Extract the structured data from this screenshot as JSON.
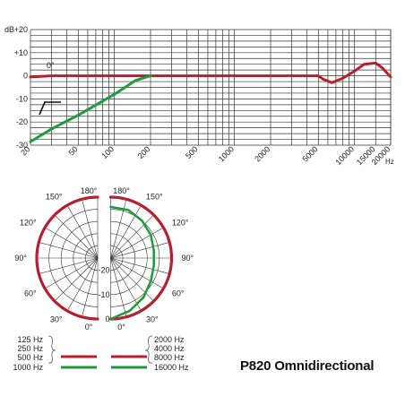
{
  "model_title": "P820 Omnidirectional",
  "colors": {
    "red": "#b5202e",
    "green": "#1f9a3c",
    "grid": "#333333",
    "text": "#222222"
  },
  "chart_data": [
    {
      "type": "line",
      "x_scale": "log",
      "xlim": [
        20,
        20000
      ],
      "ylim": [
        -30,
        20
      ],
      "x_unit": "Hz",
      "y_unit": "dB",
      "x_tick_labels": [
        "20",
        "50",
        "100",
        "200",
        "500",
        "1000",
        "2000",
        "5000",
        "10000",
        "15000",
        "20000"
      ],
      "y_tick_labels": [
        "+20",
        "+10",
        "0",
        "-10",
        "-20",
        "-30"
      ],
      "y_tick_values": [
        20,
        10,
        0,
        -10,
        -20,
        -30
      ],
      "annotations": [
        "0°"
      ],
      "series": [
        {
          "color": "red",
          "x": [
            20,
            30,
            50,
            100,
            200,
            500,
            1000,
            2000,
            4000,
            5000,
            5500,
            6500,
            8000,
            10000,
            12000,
            15000,
            17000,
            20000
          ],
          "y": [
            -0.5,
            0,
            0,
            0,
            0,
            0,
            0,
            0,
            0,
            0,
            -1.5,
            -3,
            -1,
            2,
            5,
            5.5,
            3.5,
            -0.5
          ]
        },
        {
          "color": "green",
          "x": [
            20,
            30,
            50,
            100,
            150,
            200
          ],
          "y": [
            -28.5,
            -23,
            -17,
            -8,
            -2,
            0
          ]
        }
      ]
    },
    {
      "type": "polar",
      "angle_labels": [
        "180°",
        "150°",
        "120°",
        "90°",
        "60°",
        "30°",
        "0°"
      ],
      "angle_label_values": [
        180,
        150,
        120,
        90,
        60,
        30,
        0
      ],
      "radial_labels": [
        "-20",
        "-10",
        "0"
      ],
      "radial_label_values": [
        -20,
        -10,
        0
      ],
      "r_range_db": [
        -25,
        0
      ],
      "series": [
        {
          "color": "red",
          "side": "left",
          "angles": [
            0,
            30,
            60,
            90,
            120,
            150,
            180
          ],
          "db": [
            0,
            0,
            0,
            0,
            0,
            0,
            0
          ]
        },
        {
          "color": "red",
          "side": "right",
          "angles": [
            0,
            30,
            60,
            90,
            120,
            150,
            180
          ],
          "db": [
            0,
            0,
            0,
            0,
            0,
            0,
            0
          ]
        },
        {
          "color": "green",
          "side": "right",
          "angles": [
            0,
            20,
            40,
            60,
            80,
            100,
            120,
            140,
            160,
            180
          ],
          "db": [
            0,
            -2,
            -4,
            -6,
            -7,
            -7,
            -6,
            -5,
            -4,
            -4
          ]
        }
      ],
      "legend": [
        {
          "labels": [
            "125 Hz",
            "250 Hz",
            "500 Hz"
          ],
          "color": "red"
        },
        {
          "labels": [
            "1000 Hz"
          ],
          "color": "green"
        },
        {
          "labels": [
            "2000 Hz",
            "4000 Hz",
            "8000 Hz"
          ],
          "color": "red"
        },
        {
          "labels": [
            "16000 Hz"
          ],
          "color": "green"
        }
      ]
    }
  ]
}
